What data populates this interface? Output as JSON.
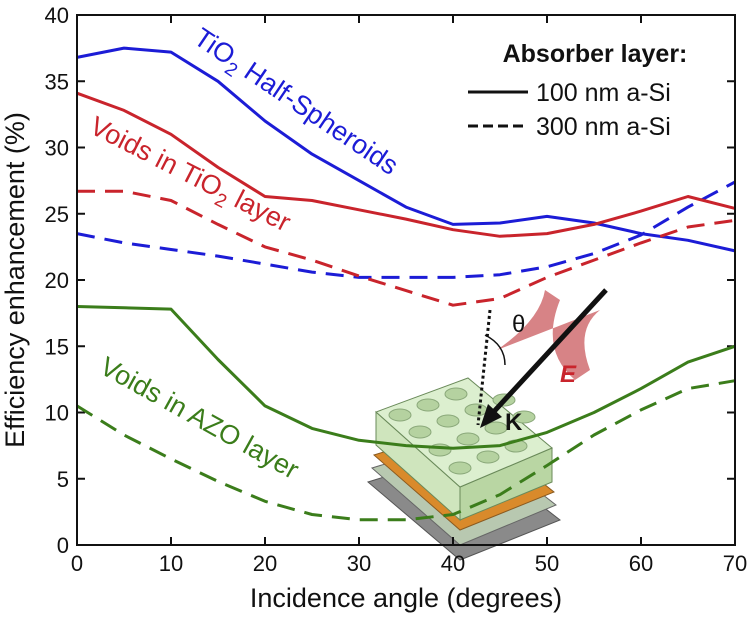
{
  "chart_data": {
    "type": "line",
    "xlabel": "Incidence angle (degrees)",
    "ylabel": "Efficiency enhancement (%)",
    "x": [
      0,
      5,
      10,
      15,
      20,
      25,
      30,
      35,
      40,
      45,
      50,
      55,
      60,
      65,
      70
    ],
    "series": [
      {
        "color": "#1c1cd6",
        "style": "solid",
        "values": [
          36.8,
          37.5,
          37.2,
          35.0,
          32.0,
          29.5,
          27.5,
          25.5,
          24.2,
          24.3,
          24.8,
          24.3,
          23.5,
          23.0,
          22.2
        ]
      },
      {
        "color": "#1c1cd6",
        "style": "dashed",
        "values": [
          23.5,
          22.8,
          22.3,
          21.8,
          21.2,
          20.6,
          20.2,
          20.2,
          20.2,
          20.4,
          21.0,
          22.0,
          23.4,
          25.5,
          27.4
        ]
      },
      {
        "color": "#c9242c",
        "style": "solid",
        "values": [
          34.1,
          32.8,
          31.0,
          28.5,
          26.3,
          26.0,
          25.3,
          24.6,
          23.8,
          23.3,
          23.5,
          24.2,
          25.2,
          26.3,
          25.4
        ]
      },
      {
        "color": "#c9242c",
        "style": "dashed",
        "values": [
          26.7,
          26.7,
          26.0,
          24.2,
          22.5,
          21.5,
          20.3,
          19.2,
          18.1,
          18.6,
          20.2,
          21.5,
          22.8,
          24.0,
          24.5
        ]
      },
      {
        "color": "#3b7d1b",
        "style": "solid",
        "values": [
          18.0,
          17.9,
          17.8,
          14.0,
          10.5,
          8.8,
          7.9,
          7.5,
          7.3,
          7.5,
          8.5,
          10.0,
          11.8,
          13.8,
          15.0
        ]
      },
      {
        "color": "#3b7d1b",
        "style": "dashed",
        "values": [
          10.5,
          8.3,
          6.5,
          4.8,
          3.3,
          2.3,
          1.9,
          1.9,
          2.3,
          3.8,
          6.0,
          8.3,
          10.2,
          11.8,
          12.4
        ]
      }
    ],
    "xlim": [
      0,
      70
    ],
    "xticks": [
      0,
      10,
      20,
      30,
      40,
      50,
      60,
      70
    ],
    "ylim": [
      0,
      40
    ],
    "yticks": [
      0,
      5,
      10,
      15,
      20,
      25,
      30,
      35,
      40
    ],
    "annotations": [
      {
        "parts": [
          "TiO",
          "2",
          " Half-Spheroids"
        ],
        "color": "#1c1cd6"
      },
      {
        "parts": [
          "Voids in TiO",
          "2",
          " layer"
        ],
        "color": "#c9242c"
      },
      {
        "parts": [
          "Voids in AZO layer"
        ],
        "color": "#3b7d1b"
      }
    ],
    "legend": {
      "title": "Absorber layer:",
      "entries": [
        {
          "label": "100 nm a-Si",
          "style": "solid"
        },
        {
          "label": "300 nm a-Si",
          "style": "dashed"
        }
      ]
    },
    "inset_labels": [
      "θ",
      "E",
      "K"
    ]
  }
}
